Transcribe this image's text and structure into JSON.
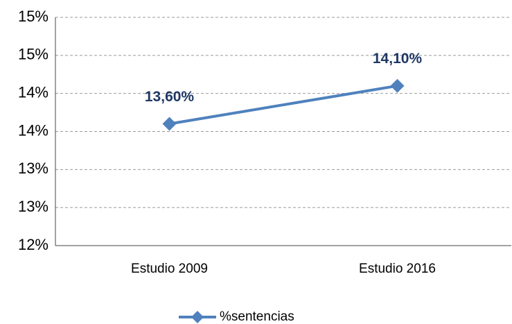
{
  "chart_data": {
    "type": "line",
    "categories": [
      "Estudio 2009",
      "Estudio 2016"
    ],
    "series": [
      {
        "name": "%sentencias",
        "color": "#4f81bd",
        "values": [
          13.6,
          14.1
        ],
        "value_labels": [
          "13,60%",
          "14,10%"
        ]
      }
    ],
    "ylim": [
      12,
      15
    ],
    "yticks": [
      {
        "value": 12,
        "label": "12%"
      },
      {
        "value": 12.5,
        "label": "13%"
      },
      {
        "value": 13,
        "label": "13%"
      },
      {
        "value": 13.5,
        "label": "14%"
      },
      {
        "value": 14,
        "label": "14%"
      },
      {
        "value": 14.5,
        "label": "15%"
      },
      {
        "value": 15,
        "label": "15%"
      }
    ],
    "grid": true,
    "legend": "bottom"
  }
}
